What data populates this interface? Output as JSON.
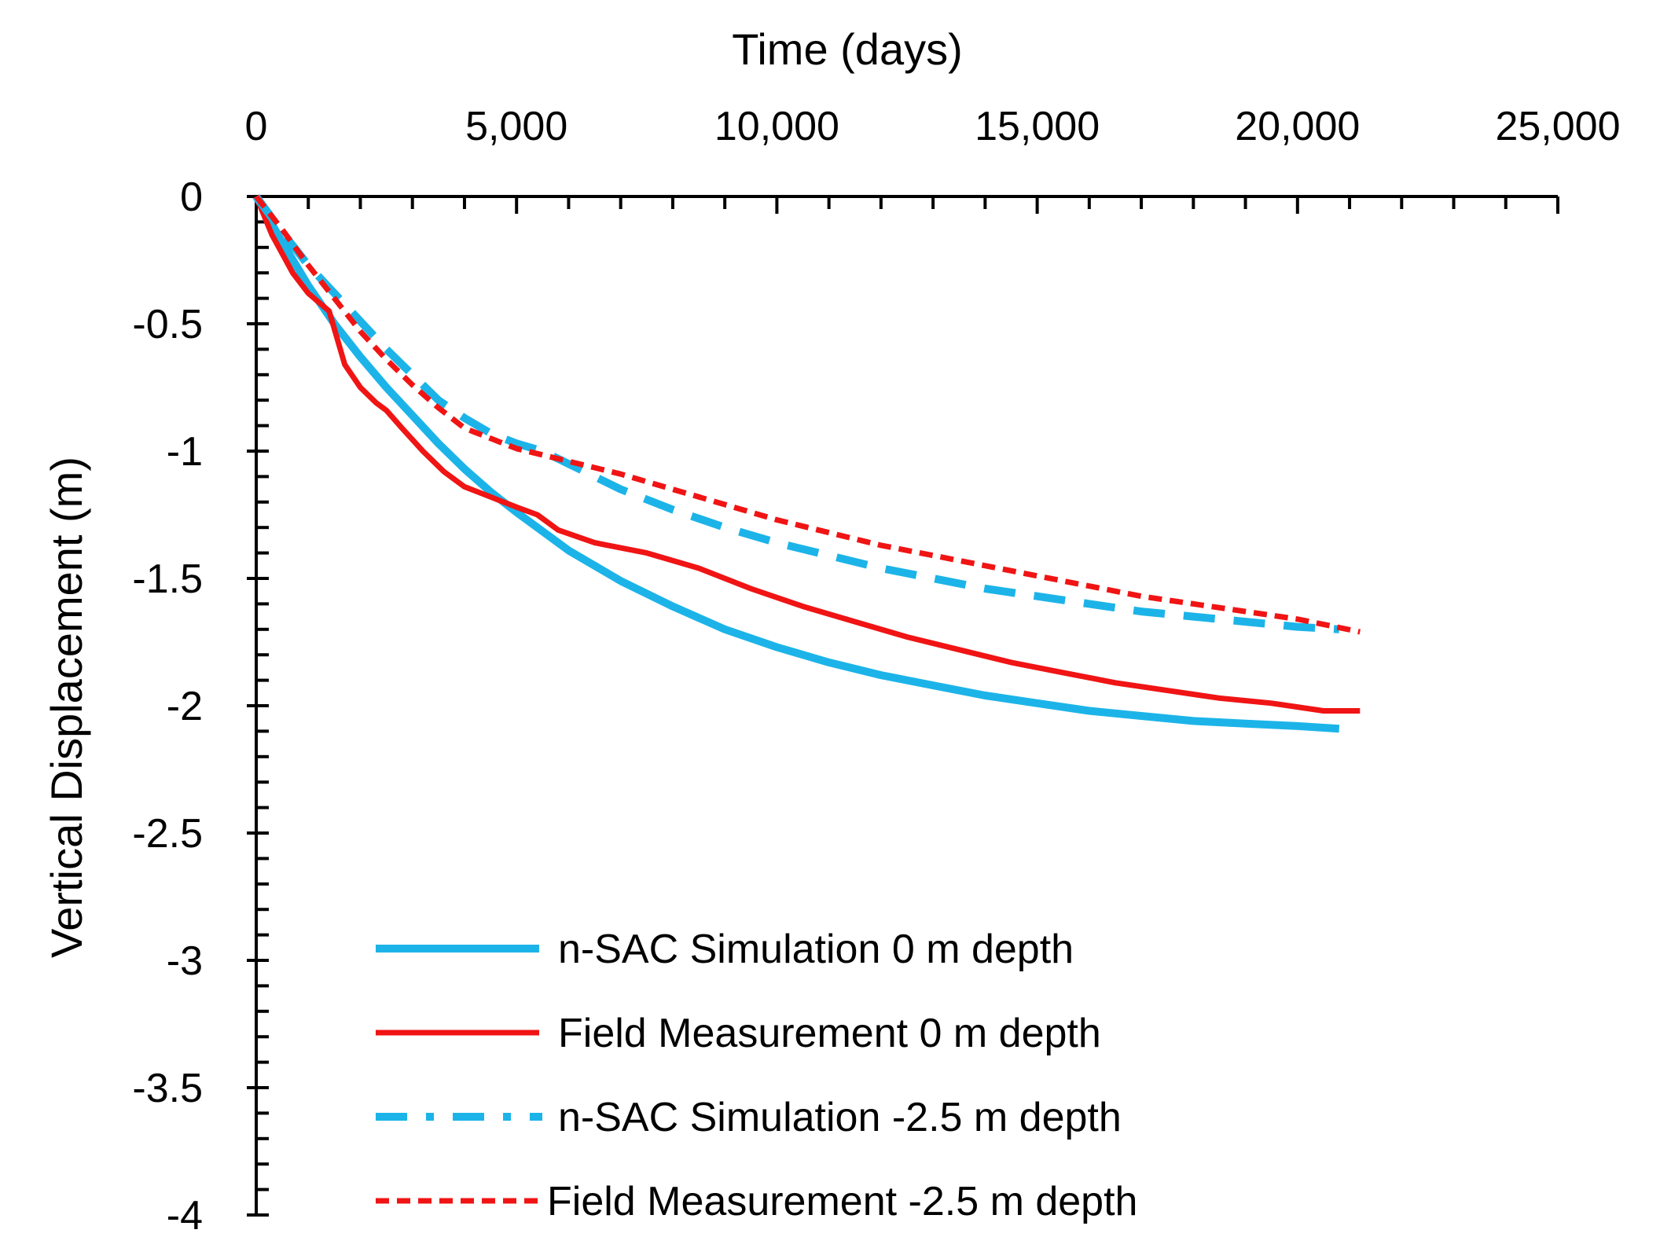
{
  "chart_data": {
    "type": "line",
    "title": "",
    "xlabel": "Time (days)",
    "ylabel": "Vertical Displacement (m)",
    "xlim": [
      0,
      25000
    ],
    "ylim": [
      -4,
      0
    ],
    "x_axis_position": "top",
    "x_ticks": [
      0,
      5000,
      10000,
      15000,
      20000,
      25000
    ],
    "x_tick_labels": [
      "0",
      "5,000",
      "10,000",
      "15,000",
      "20,000",
      "25,000"
    ],
    "y_ticks": [
      0,
      -0.5,
      -1,
      -1.5,
      -2,
      -2.5,
      -3,
      -3.5,
      -4
    ],
    "y_tick_labels": [
      "0",
      "-0.5",
      "-1",
      "-1.5",
      "-2",
      "-2.5",
      "-3",
      "-3.5",
      "-4"
    ],
    "grid": false,
    "legend_position": "bottom-center",
    "series": [
      {
        "name": "n-SAC Simulation 0 m depth",
        "color": "#1CB4E8",
        "style": "solid",
        "x": [
          0,
          500,
          1000,
          1500,
          2000,
          2500,
          3000,
          3500,
          4000,
          4500,
          5000,
          6000,
          7000,
          8000,
          9000,
          10000,
          11000,
          12000,
          13000,
          14000,
          15000,
          16000,
          17000,
          18000,
          19000,
          20000,
          20800
        ],
        "y": [
          0,
          -0.18,
          -0.35,
          -0.5,
          -0.63,
          -0.75,
          -0.86,
          -0.97,
          -1.07,
          -1.16,
          -1.24,
          -1.39,
          -1.51,
          -1.61,
          -1.7,
          -1.77,
          -1.83,
          -1.88,
          -1.92,
          -1.96,
          -1.99,
          -2.02,
          -2.04,
          -2.06,
          -2.07,
          -2.08,
          -2.09
        ]
      },
      {
        "name": "Field Measurement 0 m depth",
        "color": "#F01414",
        "style": "solid",
        "x": [
          0,
          300,
          700,
          1000,
          1400,
          1500,
          1700,
          2000,
          2300,
          2500,
          2800,
          3200,
          3600,
          4000,
          4500,
          5000,
          5400,
          5800,
          6500,
          7500,
          8500,
          9500,
          10500,
          11500,
          12500,
          13500,
          14500,
          15500,
          16500,
          17500,
          18500,
          19500,
          20500,
          21200
        ],
        "y": [
          0,
          -0.15,
          -0.3,
          -0.38,
          -0.45,
          -0.52,
          -0.66,
          -0.75,
          -0.81,
          -0.84,
          -0.91,
          -1.0,
          -1.08,
          -1.14,
          -1.18,
          -1.22,
          -1.25,
          -1.31,
          -1.36,
          -1.4,
          -1.46,
          -1.54,
          -1.61,
          -1.67,
          -1.73,
          -1.78,
          -1.83,
          -1.87,
          -1.91,
          -1.94,
          -1.97,
          -1.99,
          -2.02,
          -2.02
        ]
      },
      {
        "name": "n-SAC Simulation  -2.5 m depth",
        "color": "#1CB4E8",
        "style": "dashed",
        "x": [
          0,
          500,
          1000,
          1500,
          2000,
          2500,
          3000,
          3500,
          4000,
          4500,
          5000,
          5500,
          6000,
          7000,
          8000,
          9000,
          10000,
          11000,
          12000,
          13000,
          14000,
          15000,
          16000,
          17000,
          18000,
          19000,
          20000,
          20800
        ],
        "y": [
          0,
          -0.14,
          -0.27,
          -0.38,
          -0.49,
          -0.6,
          -0.7,
          -0.8,
          -0.87,
          -0.93,
          -0.97,
          -1.0,
          -1.05,
          -1.15,
          -1.23,
          -1.3,
          -1.36,
          -1.41,
          -1.46,
          -1.5,
          -1.54,
          -1.57,
          -1.6,
          -1.63,
          -1.65,
          -1.67,
          -1.69,
          -1.7
        ]
      },
      {
        "name": "Field Measurement -2.5 m depth",
        "color": "#F01414",
        "style": "dotted",
        "x": [
          0,
          500,
          1000,
          1500,
          2000,
          2500,
          3000,
          3500,
          4000,
          4500,
          5000,
          6000,
          7000,
          8000,
          9000,
          10000,
          11000,
          12000,
          13000,
          14000,
          15000,
          16000,
          17000,
          18000,
          19000,
          20000,
          21200
        ],
        "y": [
          0,
          -0.13,
          -0.27,
          -0.4,
          -0.53,
          -0.64,
          -0.74,
          -0.83,
          -0.91,
          -0.95,
          -0.99,
          -1.04,
          -1.09,
          -1.15,
          -1.21,
          -1.27,
          -1.32,
          -1.37,
          -1.41,
          -1.45,
          -1.49,
          -1.53,
          -1.57,
          -1.6,
          -1.63,
          -1.66,
          -1.71
        ]
      }
    ]
  }
}
